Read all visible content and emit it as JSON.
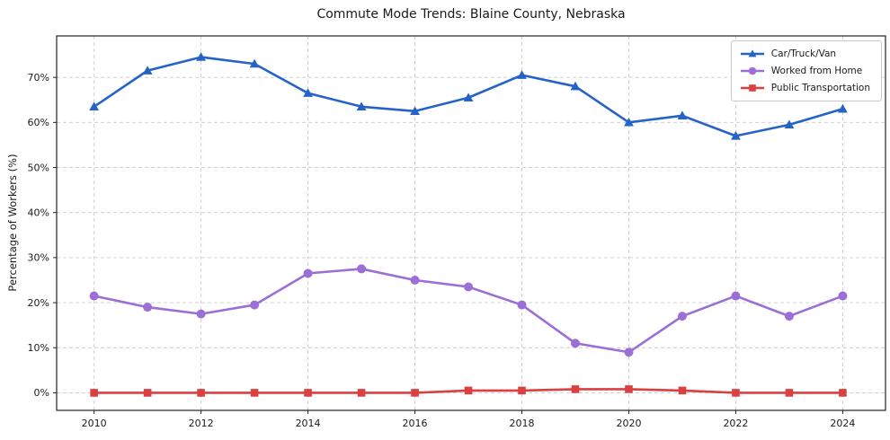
{
  "title": "Commute Mode Trends: Blaine County, Nebraska",
  "chart_data": {
    "type": "line",
    "title": "Commute Mode Trends: Blaine County, Nebraska",
    "xlabel": "",
    "ylabel": "Percentage of Workers (%)",
    "x": [
      2010,
      2011,
      2012,
      2013,
      2014,
      2015,
      2016,
      2017,
      2018,
      2019,
      2020,
      2021,
      2022,
      2023,
      2024
    ],
    "x_ticks": [
      2010,
      2012,
      2014,
      2016,
      2018,
      2020,
      2022,
      2024
    ],
    "x_tick_labels": [
      "2010",
      "2012",
      "2014",
      "2016",
      "2018",
      "2020",
      "2022",
      "2024"
    ],
    "y_ticks": [
      0,
      10,
      20,
      30,
      40,
      50,
      60,
      70
    ],
    "y_tick_suffix": "%",
    "xlim": [
      2009.3,
      2024.8
    ],
    "ylim": [
      -3.9,
      79.2
    ],
    "grid": true,
    "grid_style": "dashed",
    "grid_color": "#cccccc",
    "legend_position": "top-right",
    "series": [
      {
        "name": "Car/Truck/Van",
        "color": "#2563c9",
        "marker": "triangle",
        "values": [
          63.5,
          71.5,
          74.5,
          73.0,
          66.5,
          63.5,
          62.5,
          65.5,
          70.5,
          68.0,
          60.0,
          61.5,
          57.0,
          59.5,
          63.0
        ]
      },
      {
        "name": "Worked from Home",
        "color": "#9b6fd6",
        "marker": "circle",
        "values": [
          21.5,
          19.0,
          17.5,
          19.5,
          26.5,
          27.5,
          25.0,
          23.5,
          19.5,
          11.0,
          9.0,
          17.0,
          21.5,
          17.0,
          21.5
        ]
      },
      {
        "name": "Public Transportation",
        "color": "#d9403f",
        "marker": "square",
        "values": [
          0.0,
          0.0,
          0.0,
          0.0,
          0.0,
          0.0,
          0.0,
          0.5,
          0.5,
          0.8,
          0.8,
          0.5,
          0.0,
          0.0,
          0.0
        ]
      }
    ]
  }
}
